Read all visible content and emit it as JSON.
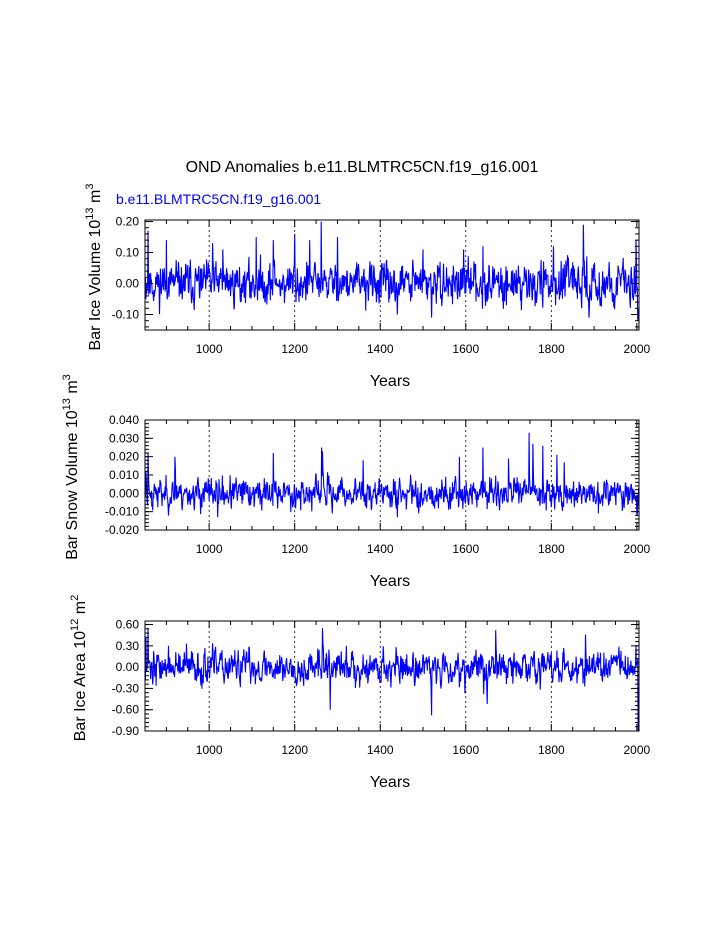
{
  "figure": {
    "title": "OND Anomalies b.e11.BLMTRC5CN.f19_g16.001",
    "case_label": "b.e11.BLMTRC5CN.f19_g16.001",
    "case_color": "#0000ff",
    "line_color": "#0000ff"
  },
  "chart_data": [
    {
      "type": "line",
      "id": "ice-volume",
      "ylabel_base": "Bar Ice Volume 10",
      "ylabel_exp": "13",
      "ylabel_unit": " m",
      "ylabel_unit_exp": "3",
      "xlabel": "Years",
      "xlim": [
        850,
        2005
      ],
      "ylim": [
        -0.15,
        0.205
      ],
      "x_ticks": [
        1000,
        1200,
        1400,
        1600,
        1800,
        2000
      ],
      "x_tick_labels": [
        "1000",
        "1200",
        "1400",
        "1600",
        "1800",
        "2000"
      ],
      "y_ticks": [
        -0.1,
        0.0,
        0.1,
        0.2
      ],
      "y_tick_labels": [
        "-0.10",
        "0.00",
        "0.10",
        "0.20"
      ],
      "gridlines_x": [
        1000,
        1200,
        1400,
        1600,
        1800
      ],
      "series": [
        {
          "name": "b.e11.BLMTRC5CN.f19_g16.001",
          "sigma": 0.045,
          "seed": 11,
          "peaks": [
            [
              851,
              0.02
            ],
            [
              857,
              0.17
            ],
            [
              865,
              0.01
            ],
            [
              900,
              0.14
            ],
            [
              1008,
              0.13
            ],
            [
              1032,
              0.11
            ],
            [
              1110,
              0.15
            ],
            [
              1150,
              0.14
            ],
            [
              1200,
              0.16
            ],
            [
              1235,
              0.14
            ],
            [
              1262,
              0.2
            ],
            [
              1300,
              0.15
            ],
            [
              1500,
              0.11
            ],
            [
              1595,
              0.11
            ],
            [
              1640,
              0.12
            ],
            [
              1805,
              0.12
            ],
            [
              1875,
              0.19
            ],
            [
              1998,
              0.14
            ],
            [
              1888,
              -0.11
            ],
            [
              1440,
              -0.1
            ],
            [
              1520,
              -0.11
            ],
            [
              2002,
              -0.12
            ]
          ]
        }
      ]
    },
    {
      "type": "line",
      "id": "snow-volume",
      "ylabel_base": "Bar Snow Volume 10",
      "ylabel_exp": "13",
      "ylabel_unit": " m",
      "ylabel_unit_exp": "3",
      "xlabel": "Years",
      "xlim": [
        850,
        2005
      ],
      "ylim": [
        -0.02,
        0.04
      ],
      "x_ticks": [
        1000,
        1200,
        1400,
        1600,
        1800,
        2000
      ],
      "x_tick_labels": [
        "1000",
        "1200",
        "1400",
        "1600",
        "1800",
        "2000"
      ],
      "y_ticks": [
        -0.02,
        -0.01,
        0.0,
        0.01,
        0.02,
        0.03,
        0.04
      ],
      "y_tick_labels": [
        "-0.020",
        "-0.010",
        "0.000",
        "0.010",
        "0.020",
        "0.030",
        "0.040"
      ],
      "gridlines_x": [
        1000,
        1200,
        1400,
        1600,
        1800
      ],
      "series": [
        {
          "name": "b.e11.BLMTRC5CN.f19_g16.001",
          "sigma": 0.0055,
          "seed": 23,
          "peaks": [
            [
              852,
              0.012
            ],
            [
              857,
              0.022
            ],
            [
              920,
              0.02
            ],
            [
              1150,
              0.022
            ],
            [
              1263,
              0.025
            ],
            [
              1265,
              0.023
            ],
            [
              1360,
              0.018
            ],
            [
              1585,
              0.02
            ],
            [
              1640,
              0.025
            ],
            [
              1700,
              0.019
            ],
            [
              1748,
              0.033
            ],
            [
              1757,
              0.027
            ],
            [
              1780,
              0.026
            ],
            [
              1813,
              0.021
            ],
            [
              1830,
              0.017
            ],
            [
              1020,
              -0.013
            ],
            [
              1440,
              -0.013
            ],
            [
              1910,
              -0.011
            ],
            [
              2000,
              -0.012
            ]
          ]
        }
      ]
    },
    {
      "type": "line",
      "id": "ice-area",
      "ylabel_base": "Bar Ice Area 10",
      "ylabel_exp": "12",
      "ylabel_unit": " m",
      "ylabel_unit_exp": "2",
      "xlabel": "Years",
      "xlim": [
        850,
        2005
      ],
      "ylim": [
        -0.9,
        0.65
      ],
      "x_ticks": [
        1000,
        1200,
        1400,
        1600,
        1800,
        2000
      ],
      "x_tick_labels": [
        "1000",
        "1200",
        "1400",
        "1600",
        "1800",
        "2000"
      ],
      "y_ticks": [
        -0.9,
        -0.6,
        -0.3,
        0.0,
        0.3,
        0.6
      ],
      "y_tick_labels": [
        "-0.90",
        "-0.60",
        "-0.30",
        "0.00",
        "0.30",
        "0.60"
      ],
      "gridlines_x": [
        1000,
        1200,
        1400,
        1600,
        1800
      ],
      "series": [
        {
          "name": "b.e11.BLMTRC5CN.f19_g16.001",
          "sigma": 0.16,
          "seed": 37,
          "peaks": [
            [
              852,
              0.42
            ],
            [
              857,
              0.55
            ],
            [
              1265,
              0.55
            ],
            [
              1670,
              0.52
            ],
            [
              1880,
              0.46
            ],
            [
              1283,
              -0.6
            ],
            [
              1520,
              -0.68
            ],
            [
              1650,
              -0.52
            ],
            [
              1998,
              0.3
            ],
            [
              2003,
              -0.9
            ]
          ]
        }
      ]
    }
  ]
}
